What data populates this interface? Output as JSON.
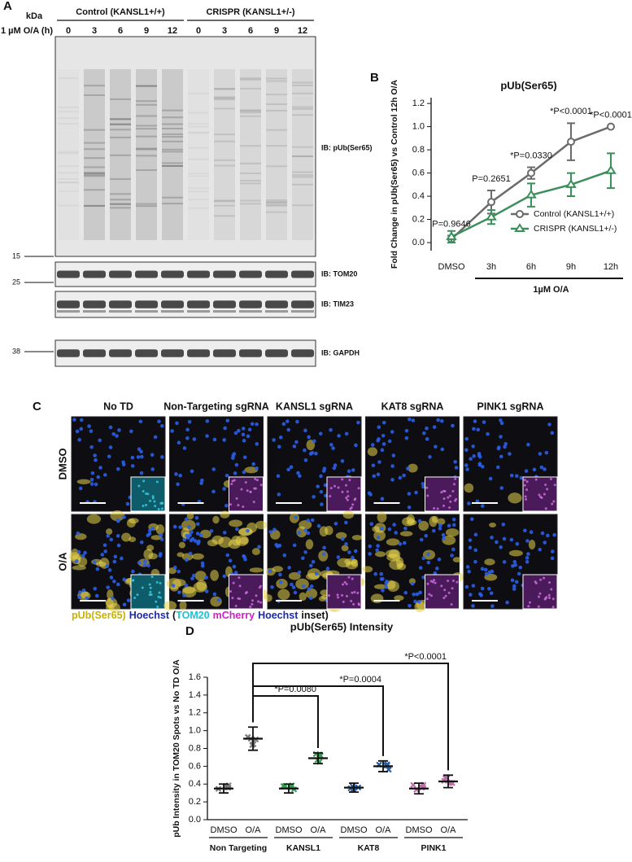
{
  "panel_a": {
    "label": "A",
    "kda_label": "kDa",
    "treatment_label": "1 µM O/A (h)",
    "groups": [
      {
        "name": "Control (KANSL1+/+)",
        "timepoints": [
          0,
          3,
          6,
          9,
          12
        ]
      },
      {
        "name": "CRISPR (KANSL1+/-)",
        "timepoints": [
          0,
          3,
          6,
          9,
          12
        ]
      }
    ],
    "blots": [
      {
        "label": "IB: pUb(Ser65)"
      },
      {
        "label": "IB: TOM20",
        "marker": 15
      },
      {
        "label": "IB: TIM23",
        "marker": 25
      },
      {
        "label": "IB: GAPDH",
        "marker": 38
      }
    ]
  },
  "chart_data": [
    {
      "type": "line",
      "panel_label": "B",
      "title": "pUb(Ser65)",
      "y_label": "Fold Change in pUb(Ser65) vs Control 12h O/A",
      "categories": [
        "DMSO",
        "3h",
        "6h",
        "9h",
        "12h"
      ],
      "bracket_label": "1µM O/A",
      "ylim": [
        -0.07,
        1.25
      ],
      "yticks": [
        {
          "value": 0,
          "label": "0.0"
        },
        0.2,
        0.4,
        0.6,
        0.8,
        {
          "value": 1,
          "label": "1.0"
        },
        1.2
      ],
      "series": [
        {
          "name": "Control (KANSL1+/+)",
          "color": "#6b6b6b",
          "marker": "circle",
          "values": [
            0.03,
            0.35,
            0.6,
            0.87,
            1.0
          ],
          "errors": [
            0.03,
            0.1,
            0.05,
            0.16,
            0
          ]
        },
        {
          "name": "CRISPR (KANSL1+/-)",
          "color": "#3a8f5a",
          "marker": "triangle",
          "values": [
            0.05,
            0.22,
            0.41,
            0.5,
            0.62
          ],
          "errors": [
            0.05,
            0.06,
            0.1,
            0.1,
            0.15
          ]
        }
      ],
      "annotations": [
        "P=0.9646",
        "P=0.2651",
        "*P=0.0330",
        "*P<0.0001",
        "*P<0.0001"
      ],
      "legend": "lower right"
    },
    {
      "type": "dot",
      "panel_label": "D",
      "title": "pUb(Ser65) Intensity",
      "y_label": "pUb Intensity in TOM20 Spots vs No TD O/A",
      "ylim": [
        0,
        1.6
      ],
      "yticks": [
        {
          "value": 0,
          "label": "0.0"
        },
        0.2,
        0.4,
        0.6,
        0.8,
        {
          "value": 1,
          "label": "1.0"
        },
        1.2,
        1.4,
        1.6
      ],
      "groups": [
        {
          "name": "Non Targeting",
          "color": "#7a7a7a",
          "conditions": [
            "DMSO",
            "O/A"
          ],
          "values": [
            0.35,
            0.91
          ],
          "errors": [
            0.05,
            0.13
          ]
        },
        {
          "name": "KANSL1",
          "color": "#3a9a55",
          "conditions": [
            "DMSO",
            "O/A"
          ],
          "values": [
            0.35,
            0.69
          ],
          "errors": [
            0.05,
            0.06
          ]
        },
        {
          "name": "KAT8",
          "color": "#2a5fa0",
          "conditions": [
            "DMSO",
            "O/A"
          ],
          "values": [
            0.36,
            0.6
          ],
          "errors": [
            0.05,
            0.06
          ]
        },
        {
          "name": "PINK1",
          "color": "#c070a8",
          "conditions": [
            "DMSO",
            "O/A"
          ],
          "values": [
            0.35,
            0.43
          ],
          "errors": [
            0.06,
            0.07
          ]
        }
      ],
      "comparisons": [
        "*P=0.0080",
        "*P=0.0004",
        "*P<0.0001"
      ]
    }
  ],
  "panel_c": {
    "label": "C",
    "columns": [
      "No TD",
      "Non-Targeting sgRNA",
      "KANSL1 sgRNA",
      "KAT8 sgRNA",
      "PINK1 sgRNA"
    ],
    "rows": [
      "DMSO",
      "O/A"
    ],
    "caption": [
      {
        "text": "pUb(Ser65)",
        "color": "#c9b200"
      },
      {
        "text": "Hoechst",
        "color": "#1e2aa8"
      },
      {
        "text": "(",
        "color": "#111111"
      },
      {
        "text": "TOM20",
        "color": "#19c4d8"
      },
      {
        "text": "mCherry",
        "color": "#d020c8"
      },
      {
        "text": "Hoechst",
        "color": "#1e2aa8"
      },
      {
        "text": "inset)",
        "color": "#111111"
      }
    ]
  }
}
